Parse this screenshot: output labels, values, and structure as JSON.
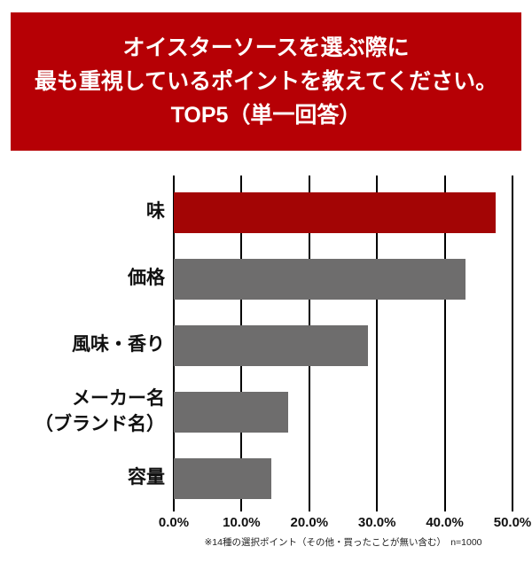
{
  "title": {
    "lines": [
      "オイスターソースを選ぶ際に",
      "最も重視しているポイントを教えてください。",
      "TOP5（単一回答）"
    ]
  },
  "chart_data": {
    "type": "bar",
    "orientation": "horizontal",
    "title": "オイスターソースを選ぶ際に最も重視しているポイントを教えてください。TOP5（単一回答）",
    "categories": [
      "味",
      "価格",
      "風味・香り",
      "メーカー名（ブランド名）",
      "容量"
    ],
    "category_label_lines": [
      [
        "味"
      ],
      [
        "価格"
      ],
      [
        "風味・香り"
      ],
      [
        "メーカー名",
        "（ブランド名）"
      ],
      [
        "容量"
      ]
    ],
    "values": [
      47.5,
      43.0,
      28.6,
      16.9,
      14.4
    ],
    "unit": "%",
    "xlabel": "",
    "ylabel": "",
    "xlim": [
      0,
      50
    ],
    "x_ticks": [
      "0.0%",
      "10.0%",
      "20.0%",
      "30.0%",
      "40.0%",
      "50.0%"
    ],
    "grid": true,
    "legend": false,
    "bar_colors": [
      "#a30505",
      "#6e6d6d",
      "#6e6d6d",
      "#6e6d6d",
      "#6e6d6d"
    ]
  },
  "footnote": "※14種の選択ポイント（その他・買ったことが無い含む）　n=1000",
  "colors": {
    "title_bg": "#b60005",
    "title_text": "#ffffff",
    "highlight_bar": "#a30505",
    "bar_gray": "#6e6d6d",
    "grid_line": "#000000",
    "text": "#111111"
  }
}
